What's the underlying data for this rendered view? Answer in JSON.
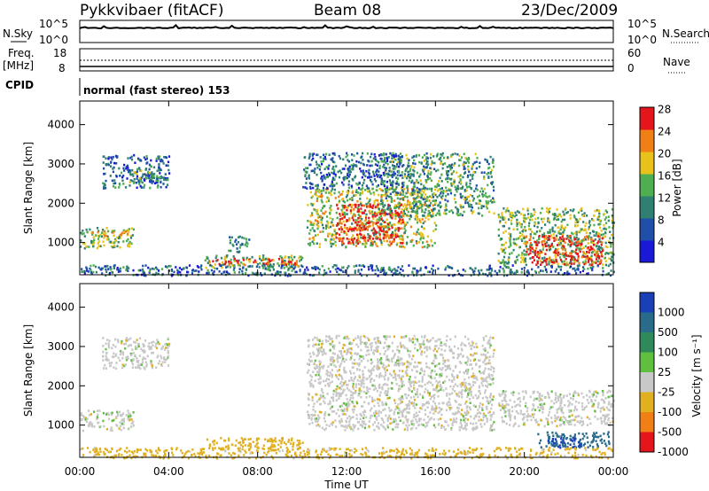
{
  "header": {
    "station": "Pykkvibaer (fitACF)",
    "beam": "Beam 08",
    "date": "23/Dec/2009"
  },
  "status": {
    "nsky_label": "N.Sky",
    "nsearch_label": "N.Search",
    "nsky_ticks": [
      "10^5",
      "10^0"
    ],
    "nsky_right_ticks": [
      "10^5",
      "10^0"
    ],
    "freq_label": "Freq.",
    "freq_unit": "[MHz]",
    "freq_ticks": [
      "18",
      "8"
    ],
    "nave_label": "Nave",
    "nave_ticks": [
      "60",
      "0"
    ],
    "cpid_label": "CPID",
    "cpid_text": "normal (fast stereo) 153"
  },
  "axes": {
    "ylabel": "Slant Range [km]",
    "xlabel": "Time UT",
    "y_ticks": [
      "1000",
      "2000",
      "3000",
      "4000"
    ],
    "x_ticks": [
      "00:00",
      "04:00",
      "08:00",
      "12:00",
      "16:00",
      "20:00",
      "00:00"
    ]
  },
  "colorbars": {
    "power": {
      "label": "Power [dB]",
      "tick_labels": [
        "4",
        "8",
        "12",
        "16",
        "20",
        "24",
        "28"
      ],
      "colors": [
        "#1a1ad6",
        "#1f4fa8",
        "#2f7f73",
        "#4fae4f",
        "#e8c21a",
        "#f07f16",
        "#e5161b"
      ]
    },
    "velocity": {
      "label": "Velocity [m s⁻¹]",
      "tick_labels": [
        "1000",
        "500",
        "100",
        "25",
        "-25",
        "-100",
        "-500",
        "-1000"
      ],
      "colors": [
        "#1a40b8",
        "#2a6a8a",
        "#2f8a5a",
        "#5fbf3f",
        "#c8c8c8",
        "#e0b020",
        "#f07f16",
        "#e5161b"
      ]
    }
  },
  "chart_data": [
    {
      "type": "heatmap",
      "title": "Power [dB]",
      "xlabel": "Time UT",
      "ylabel": "Slant Range [km]",
      "xlim": [
        0,
        24
      ],
      "ylim": [
        180,
        4600
      ],
      "color_scale": [
        0,
        30
      ],
      "regions": [
        {
          "t": [
            0.0,
            2.4
          ],
          "r": [
            880,
            1400
          ],
          "value": 14
        },
        {
          "t": [
            0.3,
            2.2
          ],
          "r": [
            1180,
            1320
          ],
          "value": 20
        },
        {
          "t": [
            1.0,
            4.0
          ],
          "r": [
            2400,
            3250
          ],
          "value": 8
        },
        {
          "t": [
            2.2,
            3.6
          ],
          "r": [
            2550,
            2900
          ],
          "value": 12
        },
        {
          "t": [
            6.6,
            7.6
          ],
          "r": [
            780,
            1180
          ],
          "value": 10
        },
        {
          "t": [
            5.6,
            10.0
          ],
          "r": [
            380,
            700
          ],
          "value": 14
        },
        {
          "t": [
            5.8,
            9.8
          ],
          "r": [
            450,
            620
          ],
          "value": 24
        },
        {
          "t": [
            10.2,
            16.0
          ],
          "r": [
            900,
            2400
          ],
          "value": 16
        },
        {
          "t": [
            11.5,
            14.5
          ],
          "r": [
            1000,
            2000
          ],
          "value": 26
        },
        {
          "t": [
            13.5,
            18.6
          ],
          "r": [
            1700,
            3300
          ],
          "value": 12
        },
        {
          "t": [
            10.0,
            14.5
          ],
          "r": [
            2400,
            3300
          ],
          "value": 8
        },
        {
          "t": [
            18.8,
            24.0
          ],
          "r": [
            450,
            1900
          ],
          "value": 14
        },
        {
          "t": [
            20.0,
            23.5
          ],
          "r": [
            450,
            1200
          ],
          "value": 26
        },
        {
          "t": [
            0.0,
            24.0
          ],
          "r": [
            180,
            450
          ],
          "value": 8
        }
      ]
    },
    {
      "type": "heatmap",
      "title": "Velocity [m s⁻¹]",
      "xlabel": "Time UT",
      "ylabel": "Slant Range [km]",
      "xlim": [
        0,
        24
      ],
      "ylim": [
        180,
        4600
      ],
      "color_scale": [
        -1000,
        1000
      ],
      "regions": [
        {
          "t": [
            0.0,
            2.4
          ],
          "r": [
            880,
            1400
          ],
          "value": 0
        },
        {
          "t": [
            1.0,
            4.0
          ],
          "r": [
            2450,
            3250
          ],
          "value": 0
        },
        {
          "t": [
            5.6,
            10.0
          ],
          "r": [
            400,
            700
          ],
          "value": -100
        },
        {
          "t": [
            10.2,
            18.6
          ],
          "r": [
            900,
            3300
          ],
          "value": 0
        },
        {
          "t": [
            18.8,
            24.0
          ],
          "r": [
            1000,
            1900
          ],
          "value": 0
        },
        {
          "t": [
            20.5,
            23.8
          ],
          "r": [
            450,
            850
          ],
          "value": 400
        },
        {
          "t": [
            21.0,
            22.5
          ],
          "r": [
            450,
            700
          ],
          "value": 800
        },
        {
          "t": [
            0.0,
            24.0
          ],
          "r": [
            180,
            450
          ],
          "value": -50
        }
      ]
    }
  ]
}
